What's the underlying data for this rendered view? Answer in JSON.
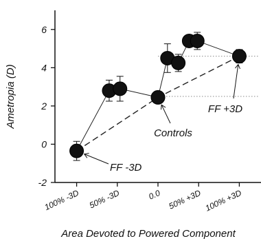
{
  "chart_data": {
    "type": "scatter",
    "xlabel": "Area Devoted to Powered Component",
    "ylabel": "Ametropia (D)",
    "ylim": [
      -2,
      7
    ],
    "yticks": [
      -2,
      0,
      2,
      4,
      6
    ],
    "xlim": [
      -3.8,
      3.8
    ],
    "categories": [
      {
        "label": "100% -3D",
        "x": -3
      },
      {
        "label": "50% -3D",
        "x": -1.5
      },
      {
        "label": "0.0",
        "x": 0
      },
      {
        "label": "50% +3D",
        "x": 1.5
      },
      {
        "label": "100% +3D",
        "x": 3
      }
    ],
    "grid": false,
    "reference_lines": [
      {
        "y": 4.6,
        "style": "dotted"
      },
      {
        "y": 2.5,
        "style": "dotted"
      }
    ],
    "series": [
      {
        "style": "solid",
        "points": [
          {
            "x": -3.0,
            "y": -0.35,
            "err": 0.5
          },
          {
            "x": -1.8,
            "y": 2.8,
            "err": 0.55
          },
          {
            "x": -1.4,
            "y": 2.9,
            "err": 0.65
          },
          {
            "x": 0.0,
            "y": 2.45,
            "err": 0.2
          },
          {
            "x": 0.35,
            "y": 4.5,
            "err": 0.75
          },
          {
            "x": 0.75,
            "y": 4.25,
            "err": 0.45
          },
          {
            "x": 1.15,
            "y": 5.4,
            "err": 0.3
          },
          {
            "x": 1.45,
            "y": 5.4,
            "err": 0.45
          },
          {
            "x": 3.0,
            "y": 4.6,
            "err": 0.35
          }
        ]
      },
      {
        "style": "dashed",
        "points": [
          {
            "x": -3.0,
            "y": -0.35
          },
          {
            "x": 0.0,
            "y": 2.45
          },
          {
            "x": 3.0,
            "y": 4.6
          }
        ]
      }
    ],
    "annotations": [
      {
        "text": "FF -3D",
        "x": -3.0,
        "y": -0.35
      },
      {
        "text": "Controls",
        "x": 0.0,
        "y": 2.45
      },
      {
        "text": "FF +3D",
        "x": 3.0,
        "y": 4.6
      }
    ]
  }
}
